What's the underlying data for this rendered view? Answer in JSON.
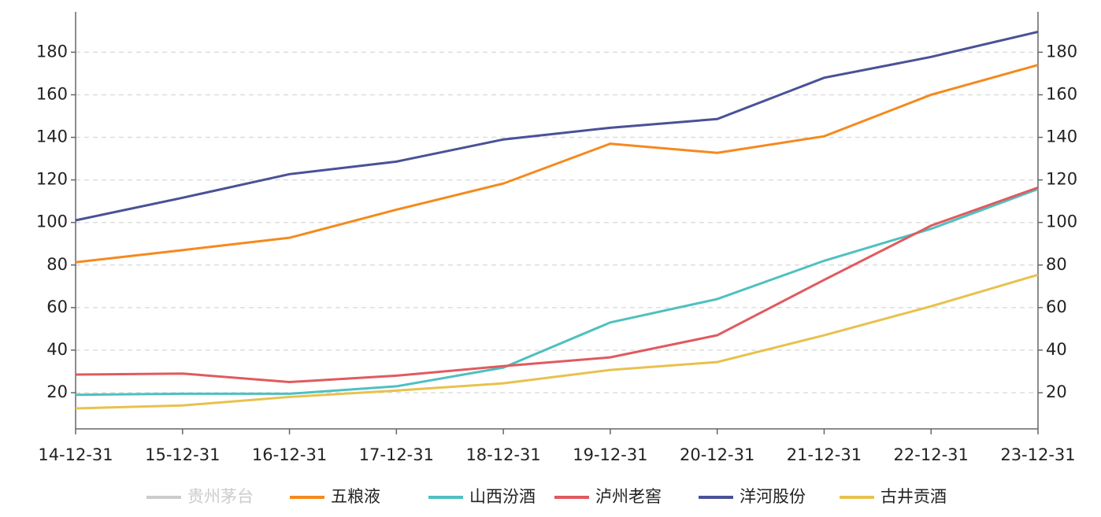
{
  "chart_data": {
    "type": "line",
    "x": [
      "14-12-31",
      "15-12-31",
      "16-12-31",
      "17-12-31",
      "18-12-31",
      "19-12-31",
      "20-12-31",
      "21-12-31",
      "22-12-31",
      "23-12-31"
    ],
    "series": [
      {
        "name": "贵州茅台",
        "color": "#cccccc",
        "hidden": true,
        "values": [
          null,
          null,
          null,
          null,
          null,
          null,
          null,
          null,
          null,
          null
        ]
      },
      {
        "name": "五粮液",
        "color": "#f5891e",
        "values": [
          81.3,
          87,
          92.8,
          106,
          118.3,
          137,
          132.7,
          140.5,
          160,
          174
        ]
      },
      {
        "name": "山西汾酒",
        "color": "#4fc0c0",
        "values": [
          19,
          19.5,
          19.5,
          23,
          31.8,
          53,
          64,
          82,
          97,
          115.7
        ]
      },
      {
        "name": "泸州老窖",
        "color": "#e05a5f",
        "values": [
          28.5,
          29,
          25,
          28,
          32.5,
          36.6,
          47,
          73,
          98.5,
          116.4
        ]
      },
      {
        "name": "洋河股份",
        "color": "#4a5196",
        "values": [
          101,
          111.6,
          122.7,
          128.6,
          139,
          144.5,
          148.6,
          168,
          177.8,
          189.6
        ]
      },
      {
        "name": "古井贡酒",
        "color": "#e8c14e",
        "values": [
          12.6,
          14,
          18,
          21,
          24.4,
          30.7,
          34.4,
          47,
          60.6,
          75.4
        ]
      }
    ],
    "ylim": [
      3,
      199
    ],
    "yticks": [
      20,
      40,
      60,
      80,
      100,
      120,
      140,
      160,
      180
    ],
    "y2lim": [
      3,
      199
    ],
    "y2ticks": [
      20,
      40,
      60,
      80,
      100,
      120,
      140,
      160,
      180
    ],
    "grid": true,
    "legend": "bottom"
  }
}
